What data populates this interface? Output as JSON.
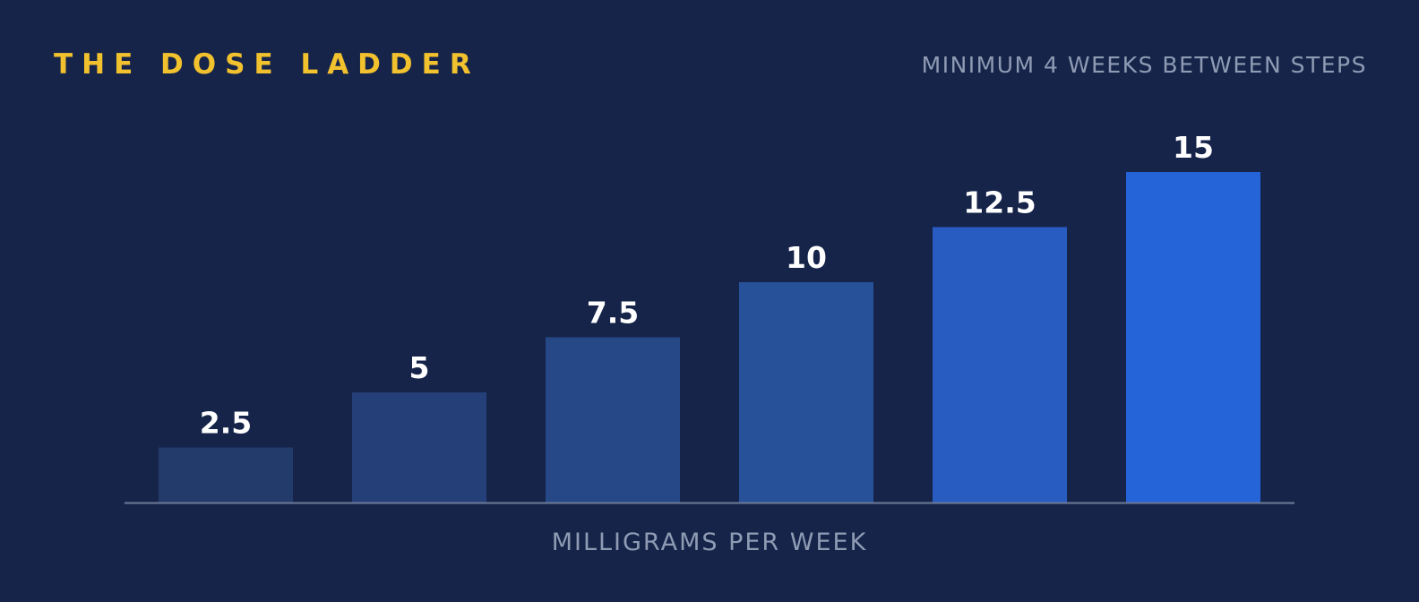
{
  "header": {
    "title": "THE DOSE LADDER",
    "subtitle": "MINIMUM 4 WEEKS BETWEEN STEPS"
  },
  "colors": {
    "background": "#16244a",
    "title": "#f2c12e",
    "muted_text": "#8f9bb3",
    "value_label": "#ffffff",
    "baseline": "#6d7a98",
    "bars": [
      "#233b6b",
      "#253f79",
      "#264887",
      "#275299",
      "#295cc1",
      "#2563d8"
    ]
  },
  "chart_data": {
    "type": "bar",
    "categories": [
      "",
      "",
      "",
      "",
      "",
      ""
    ],
    "values": [
      2.5,
      5,
      7.5,
      10,
      12.5,
      15
    ],
    "data_labels": [
      "2.5",
      "5",
      "7.5",
      "10",
      "12.5",
      "15"
    ],
    "title": "THE DOSE LADDER",
    "subtitle": "MINIMUM 4 WEEKS BETWEEN STEPS",
    "xlabel": "MILLIGRAMS PER WEEK",
    "ylabel": "",
    "ylim": [
      0,
      15
    ],
    "grid": false,
    "legend": "none"
  }
}
